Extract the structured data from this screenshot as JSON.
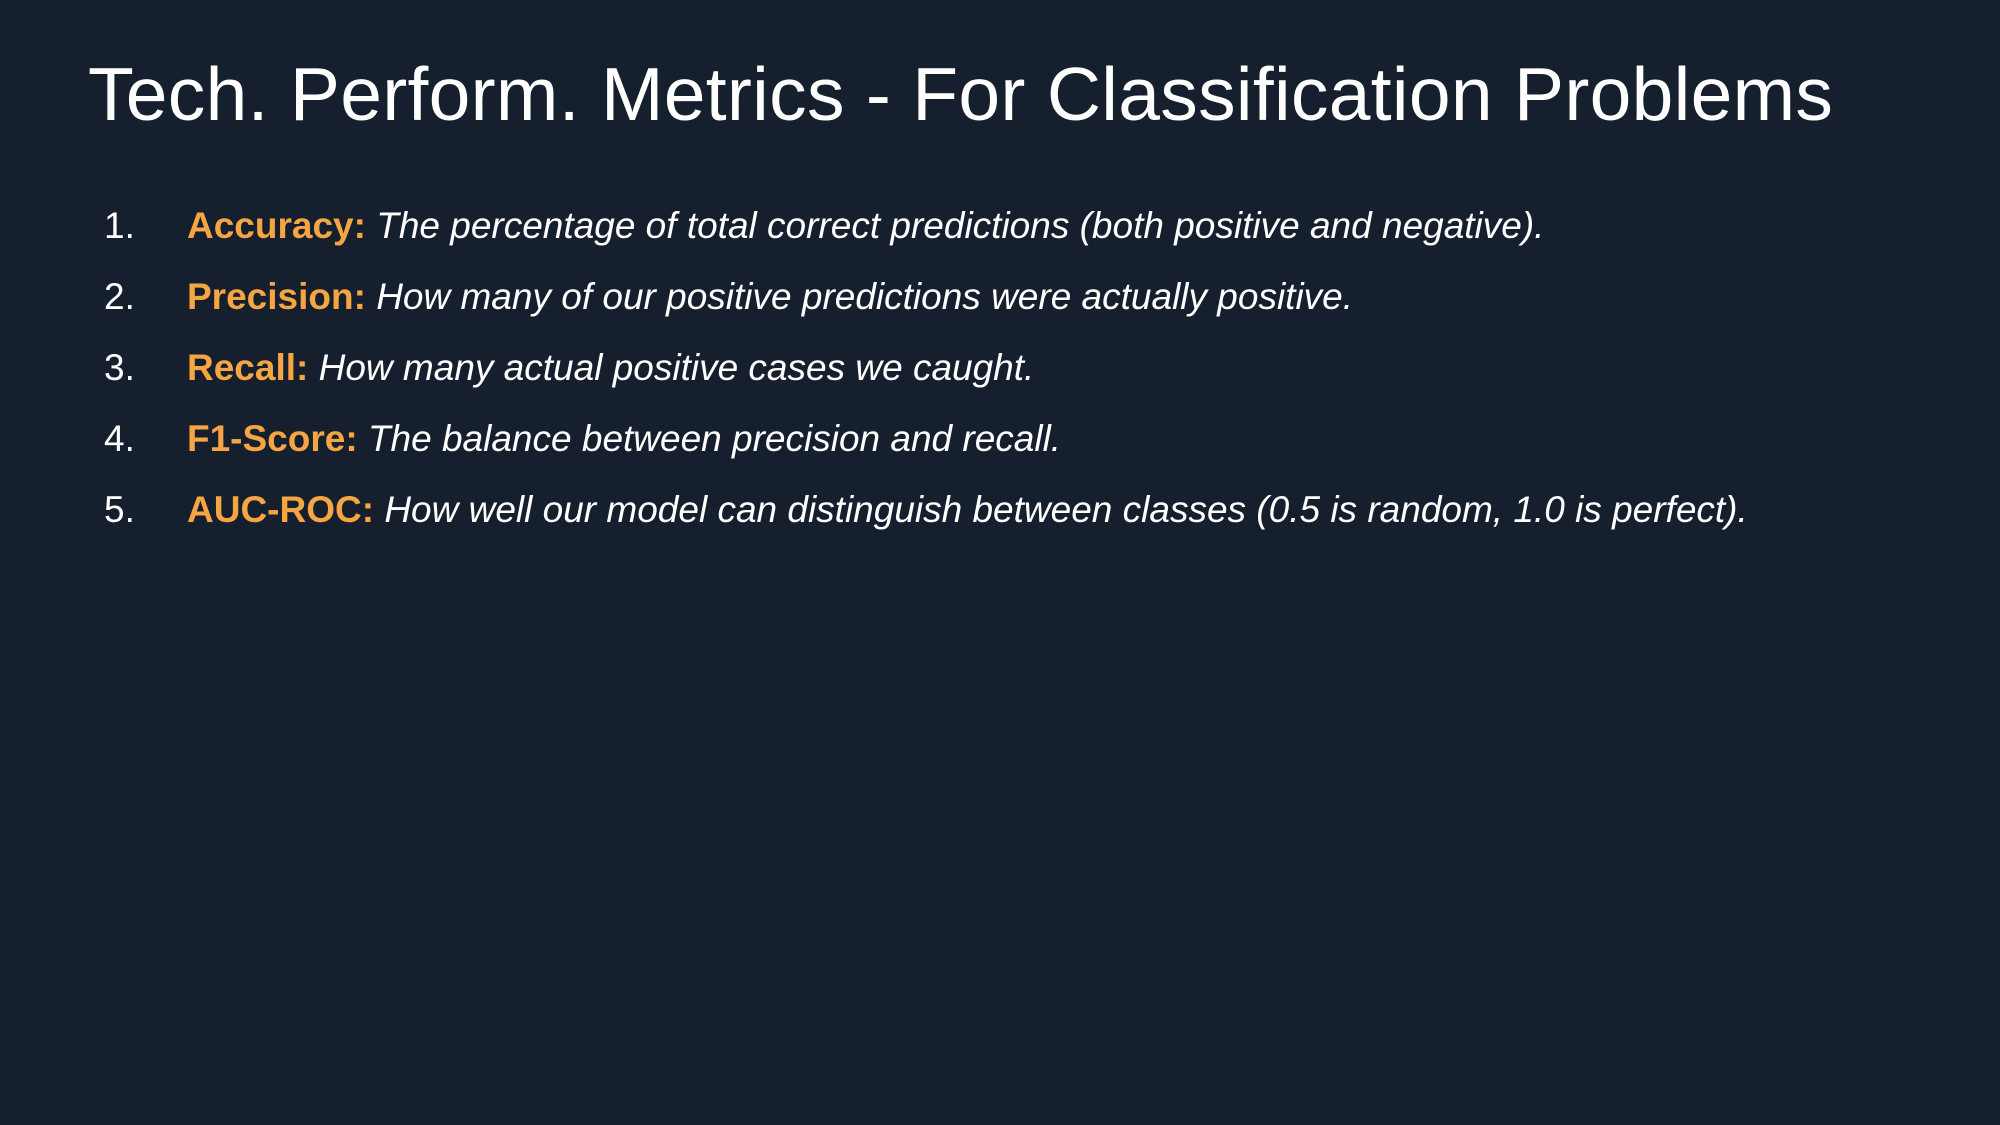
{
  "slide": {
    "title": "Tech. Perform. Metrics - For Classification Problems",
    "metrics": [
      {
        "number": "1.",
        "term": "Accuracy:",
        "description": "The percentage of total correct predictions (both positive and negative)."
      },
      {
        "number": "2.",
        "term": "Precision:",
        "description": "How many of our positive predictions were actually positive."
      },
      {
        "number": "3.",
        "term": "Recall:",
        "description": "How many actual positive cases we caught."
      },
      {
        "number": "4.",
        "term": "F1-Score:",
        "description": "The balance between precision and recall."
      },
      {
        "number": "5.",
        "term": "AUC-ROC:",
        "description": "How well our model can distinguish between classes (0.5 is random, 1.0 is perfect)."
      }
    ]
  },
  "colors": {
    "background": "#161f2e",
    "title_text": "#ffffff",
    "term_accent": "#f5a542",
    "body_text": "#ffffff"
  }
}
